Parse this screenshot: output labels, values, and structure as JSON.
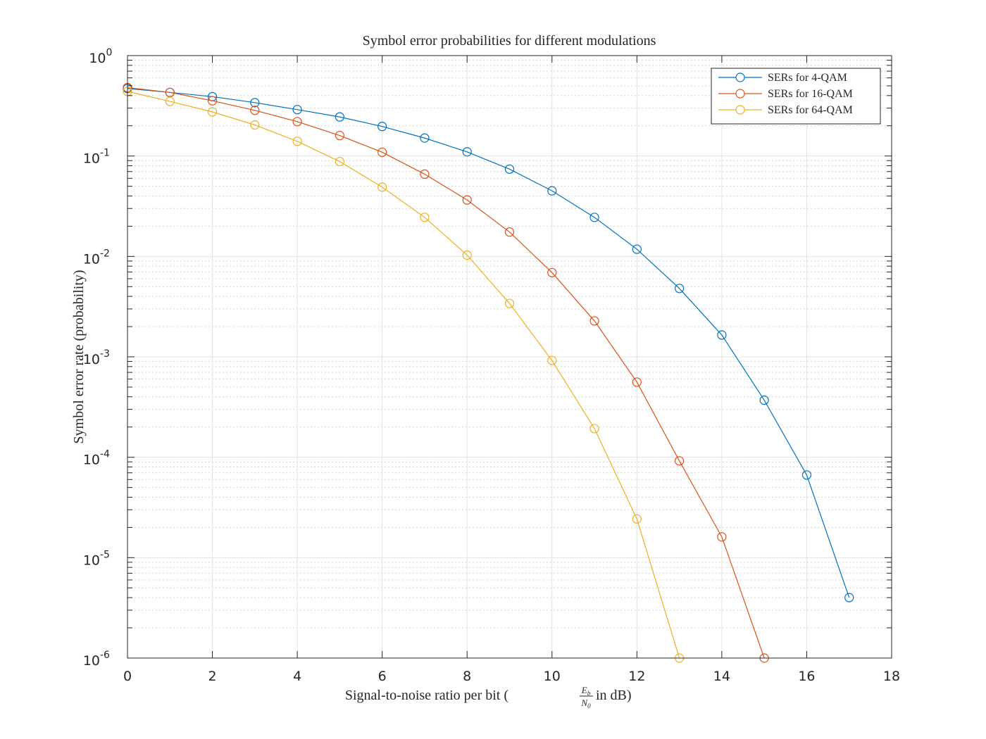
{
  "chart_data": {
    "type": "line",
    "title": "Symbol error probabilities for different modulations",
    "xlabel_main": "Signal-to-noise ratio per bit (",
    "xlabel_frac_num": "E",
    "xlabel_frac_num_sub": "b",
    "xlabel_frac_den": "N",
    "xlabel_frac_den_sub": "0",
    "xlabel_tail": " in dB)",
    "ylabel": "Symbol error rate (probability)",
    "xlim": [
      0,
      18
    ],
    "ylim": [
      1e-06,
      1
    ],
    "yscale": "log",
    "grid": true,
    "minor_grid": true,
    "legend_position": "top-right",
    "x_ticks": [
      "0",
      "2",
      "4",
      "6",
      "8",
      "10",
      "12",
      "14",
      "16",
      "18"
    ],
    "y_ticks": [
      {
        "base": "10",
        "exp": "0"
      },
      {
        "base": "10",
        "exp": "-1"
      },
      {
        "base": "10",
        "exp": "-2"
      },
      {
        "base": "10",
        "exp": "-3"
      },
      {
        "base": "10",
        "exp": "-4"
      },
      {
        "base": "10",
        "exp": "-5"
      },
      {
        "base": "10",
        "exp": "-6"
      }
    ],
    "series": [
      {
        "name": "SERs for 4-QAM",
        "color": "#0072BD",
        "marker": "circle",
        "x": [
          0,
          1,
          2,
          3,
          4,
          5,
          6,
          7,
          8,
          9,
          10,
          11,
          12,
          13,
          14,
          15,
          16,
          17
        ],
        "y": [
          0.47,
          0.43,
          0.39,
          0.34,
          0.29,
          0.245,
          0.197,
          0.151,
          0.11,
          0.074,
          0.045,
          0.0245,
          0.0118,
          0.0048,
          0.00165,
          0.00037,
          6.65e-05,
          4e-06
        ]
      },
      {
        "name": "SERs for 16-QAM",
        "color": "#D95319",
        "marker": "circle",
        "x": [
          0,
          1,
          2,
          3,
          4,
          5,
          6,
          7,
          8,
          9,
          10,
          11,
          12,
          13,
          14,
          15
        ],
        "y": [
          0.48,
          0.43,
          0.355,
          0.285,
          0.22,
          0.16,
          0.109,
          0.066,
          0.0365,
          0.0175,
          0.0069,
          0.00228,
          0.00056,
          9.2e-05,
          1.61e-05,
          1e-06
        ]
      },
      {
        "name": "SERs for 64-QAM",
        "color": "#EDB120",
        "marker": "circle",
        "x": [
          0,
          1,
          2,
          3,
          4,
          5,
          6,
          7,
          8,
          9,
          10,
          11,
          12,
          13
        ],
        "y": [
          0.44,
          0.35,
          0.275,
          0.204,
          0.14,
          0.088,
          0.049,
          0.0245,
          0.0103,
          0.0034,
          0.00092,
          0.000193,
          2.43e-05,
          1e-06
        ]
      }
    ]
  }
}
